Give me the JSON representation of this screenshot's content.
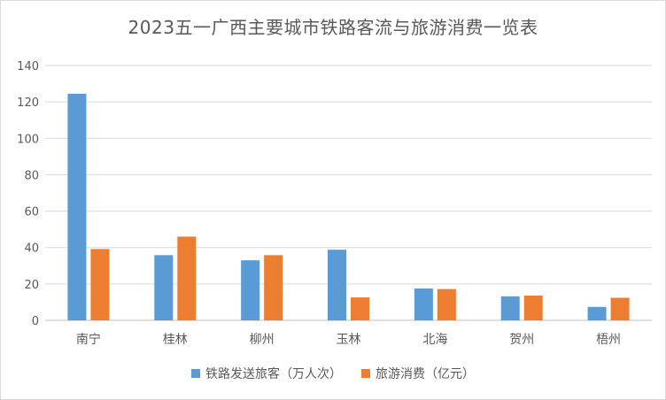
{
  "chart_data": {
    "type": "bar",
    "title": "2023五一广西主要城市铁路客流与旅游消费一览表",
    "categories": [
      "南宁",
      "桂林",
      "柳州",
      "玉林",
      "北海",
      "贺州",
      "梧州"
    ],
    "series": [
      {
        "name": "铁路发送旅客（万人次）",
        "color": "#5b9bd5",
        "values": [
          124.5,
          35.8,
          33.0,
          38.8,
          17.5,
          13.2,
          7.4
        ]
      },
      {
        "name": "旅游消费（亿元）",
        "color": "#ed7d31",
        "values": [
          39.2,
          46.0,
          35.8,
          12.6,
          17.2,
          13.6,
          12.4
        ]
      }
    ],
    "ylim": [
      0,
      140
    ],
    "yticks": [
      0,
      20,
      40,
      60,
      80,
      100,
      120,
      140
    ],
    "grid": true,
    "legend_position": "bottom"
  }
}
